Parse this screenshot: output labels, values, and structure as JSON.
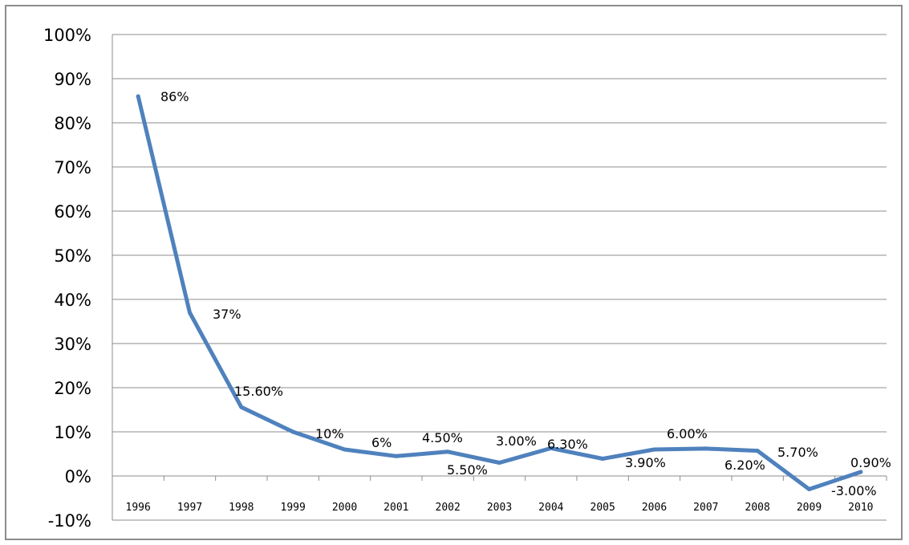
{
  "chart_data": {
    "type": "line",
    "title": "",
    "xlabel": "",
    "ylabel": "",
    "ylim": [
      -10,
      100
    ],
    "grid": true,
    "legend": "none",
    "categories": [
      "1996",
      "1997",
      "1998",
      "1999",
      "2000",
      "2001",
      "2002",
      "2003",
      "2004",
      "2005",
      "2006",
      "2007",
      "2008",
      "2009",
      "2010"
    ],
    "y_ticks": [
      "-10%",
      "0%",
      "10%",
      "20%",
      "30%",
      "40%",
      "50%",
      "60%",
      "70%",
      "80%",
      "90%",
      "100%"
    ],
    "series": [
      {
        "color": "#4f81bd",
        "values": [
          86,
          37,
          15.6,
          10,
          6,
          4.5,
          5.5,
          3.0,
          6.3,
          3.9,
          6.0,
          6.2,
          5.7,
          -3.0,
          0.9
        ]
      }
    ],
    "data_labels": [
      "86%",
      "37%",
      "15.60%",
      "10%",
      "6%",
      "4.50%",
      "5.50%",
      "3.00%",
      "6.30%",
      "3.90%",
      "6.00%",
      "6.20%",
      "5.70%",
      "-3.00%",
      "0.90%"
    ]
  }
}
